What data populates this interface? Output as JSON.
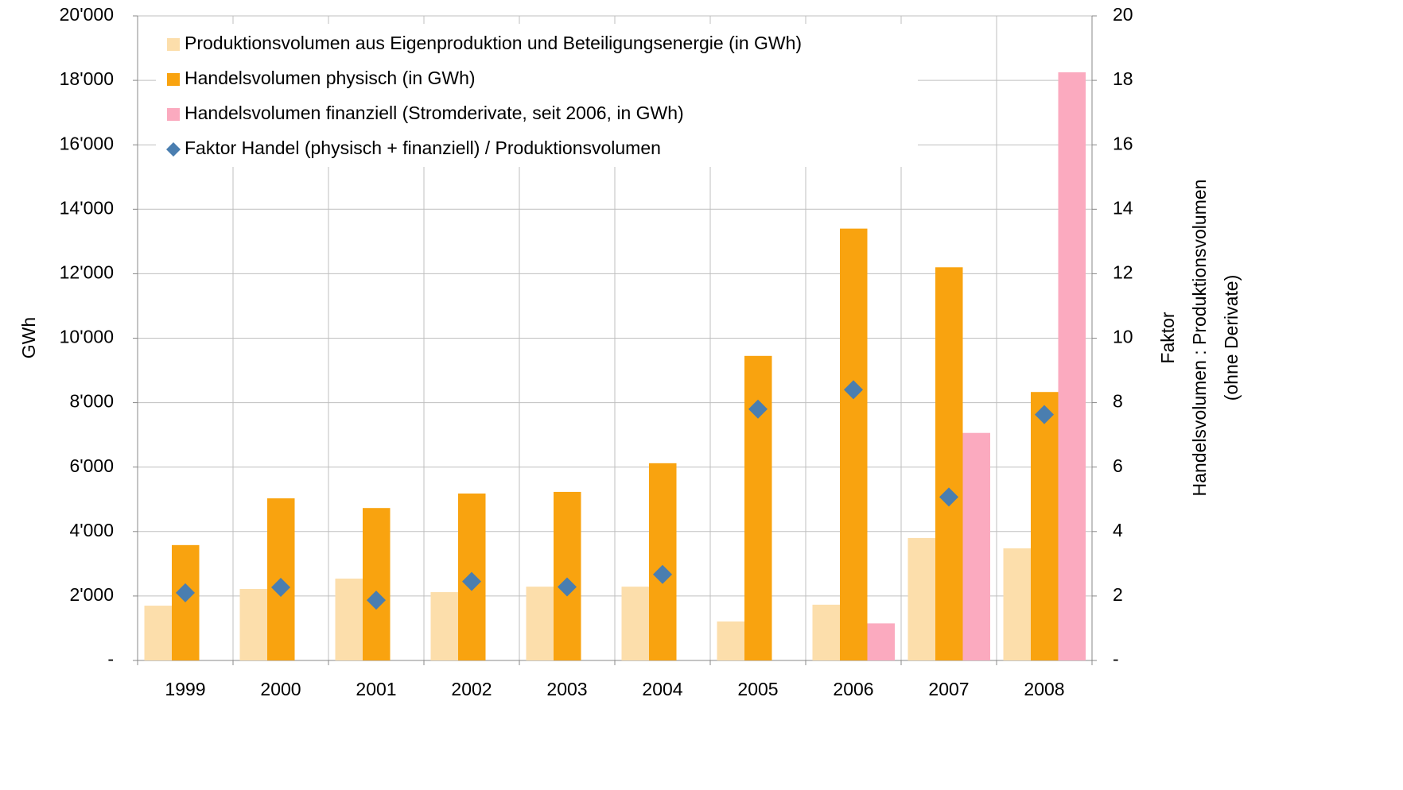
{
  "chart_data": {
    "type": "bar",
    "categories": [
      "1999",
      "2000",
      "2001",
      "2002",
      "2003",
      "2004",
      "2005",
      "2006",
      "2007",
      "2008"
    ],
    "series": [
      {
        "name": "Produktionsvolumen aus Eigenproduktion und Beteiligungsenergie (in GWh)",
        "color": "#fcdeab",
        "values": [
          1700,
          2220,
          2540,
          2120,
          2290,
          2290,
          1210,
          1730,
          3800,
          3480
        ]
      },
      {
        "name": "Handelsvolumen physisch (in GWh)",
        "color": "#f9a30f",
        "values": [
          3580,
          5030,
          4730,
          5180,
          5230,
          6120,
          9450,
          13400,
          12200,
          8330
        ]
      },
      {
        "name": "Handelsvolumen finanziell (Stromderivate, seit 2006, in GWh)",
        "color": "#fbaabf",
        "values": [
          null,
          null,
          null,
          null,
          null,
          null,
          null,
          1150,
          7060,
          18250
        ]
      },
      {
        "name": "Faktor Handel (physisch + finanziell) / Produktionsvolumen",
        "color": "#4a7eb0",
        "type": "scatter",
        "axis": "y2",
        "values": [
          2.1,
          2.27,
          1.87,
          2.45,
          2.28,
          2.67,
          7.8,
          8.4,
          5.07,
          7.63
        ]
      }
    ],
    "ylabel": "GWh",
    "y2label": [
      "Faktor",
      "Handelsvolumen : Produktionsvolumen",
      "(ohne Derivate)"
    ],
    "ylim": [
      0,
      20000
    ],
    "yticks": [
      {
        "value": 0,
        "label": "-"
      },
      {
        "value": 2000,
        "label": "2'000"
      },
      {
        "value": 4000,
        "label": "4'000"
      },
      {
        "value": 6000,
        "label": "6'000"
      },
      {
        "value": 8000,
        "label": "8'000"
      },
      {
        "value": 10000,
        "label": "10'000"
      },
      {
        "value": 12000,
        "label": "12'000"
      },
      {
        "value": 14000,
        "label": "14'000"
      },
      {
        "value": 16000,
        "label": "16'000"
      },
      {
        "value": 18000,
        "label": "18'000"
      },
      {
        "value": 20000,
        "label": "20'000"
      }
    ],
    "y2lim": [
      0,
      20
    ],
    "y2ticks": [
      {
        "value": 0,
        "label": "-"
      },
      2,
      4,
      6,
      8,
      10,
      12,
      14,
      16,
      18,
      20
    ],
    "grid": true,
    "legend": "upper left"
  }
}
